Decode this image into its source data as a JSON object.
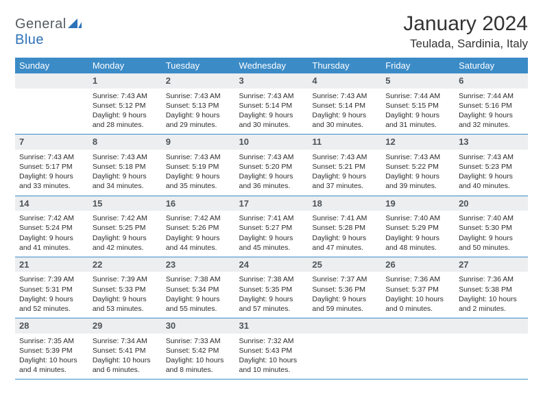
{
  "brand": {
    "name_a": "General",
    "name_b": "Blue"
  },
  "title": "January 2024",
  "location": "Teulada, Sardinia, Italy",
  "day_names": [
    "Sunday",
    "Monday",
    "Tuesday",
    "Wednesday",
    "Thursday",
    "Friday",
    "Saturday"
  ],
  "colors": {
    "header_bg": "#3b8bc7",
    "header_fg": "#ffffff",
    "daynum_bg": "#eceeef",
    "daynum_fg": "#4d5359",
    "rule": "#3b8bc7",
    "page_bg": "#ffffff",
    "text": "#2b2b2b",
    "logo_gray": "#555b60",
    "logo_blue": "#2d72b8"
  },
  "weeks": [
    [
      {
        "n": "",
        "sunrise": "",
        "sunset": "",
        "daylight": ""
      },
      {
        "n": "1",
        "sunrise": "Sunrise: 7:43 AM",
        "sunset": "Sunset: 5:12 PM",
        "daylight": "Daylight: 9 hours and 28 minutes."
      },
      {
        "n": "2",
        "sunrise": "Sunrise: 7:43 AM",
        "sunset": "Sunset: 5:13 PM",
        "daylight": "Daylight: 9 hours and 29 minutes."
      },
      {
        "n": "3",
        "sunrise": "Sunrise: 7:43 AM",
        "sunset": "Sunset: 5:14 PM",
        "daylight": "Daylight: 9 hours and 30 minutes."
      },
      {
        "n": "4",
        "sunrise": "Sunrise: 7:43 AM",
        "sunset": "Sunset: 5:14 PM",
        "daylight": "Daylight: 9 hours and 30 minutes."
      },
      {
        "n": "5",
        "sunrise": "Sunrise: 7:44 AM",
        "sunset": "Sunset: 5:15 PM",
        "daylight": "Daylight: 9 hours and 31 minutes."
      },
      {
        "n": "6",
        "sunrise": "Sunrise: 7:44 AM",
        "sunset": "Sunset: 5:16 PM",
        "daylight": "Daylight: 9 hours and 32 minutes."
      }
    ],
    [
      {
        "n": "7",
        "sunrise": "Sunrise: 7:43 AM",
        "sunset": "Sunset: 5:17 PM",
        "daylight": "Daylight: 9 hours and 33 minutes."
      },
      {
        "n": "8",
        "sunrise": "Sunrise: 7:43 AM",
        "sunset": "Sunset: 5:18 PM",
        "daylight": "Daylight: 9 hours and 34 minutes."
      },
      {
        "n": "9",
        "sunrise": "Sunrise: 7:43 AM",
        "sunset": "Sunset: 5:19 PM",
        "daylight": "Daylight: 9 hours and 35 minutes."
      },
      {
        "n": "10",
        "sunrise": "Sunrise: 7:43 AM",
        "sunset": "Sunset: 5:20 PM",
        "daylight": "Daylight: 9 hours and 36 minutes."
      },
      {
        "n": "11",
        "sunrise": "Sunrise: 7:43 AM",
        "sunset": "Sunset: 5:21 PM",
        "daylight": "Daylight: 9 hours and 37 minutes."
      },
      {
        "n": "12",
        "sunrise": "Sunrise: 7:43 AM",
        "sunset": "Sunset: 5:22 PM",
        "daylight": "Daylight: 9 hours and 39 minutes."
      },
      {
        "n": "13",
        "sunrise": "Sunrise: 7:43 AM",
        "sunset": "Sunset: 5:23 PM",
        "daylight": "Daylight: 9 hours and 40 minutes."
      }
    ],
    [
      {
        "n": "14",
        "sunrise": "Sunrise: 7:42 AM",
        "sunset": "Sunset: 5:24 PM",
        "daylight": "Daylight: 9 hours and 41 minutes."
      },
      {
        "n": "15",
        "sunrise": "Sunrise: 7:42 AM",
        "sunset": "Sunset: 5:25 PM",
        "daylight": "Daylight: 9 hours and 42 minutes."
      },
      {
        "n": "16",
        "sunrise": "Sunrise: 7:42 AM",
        "sunset": "Sunset: 5:26 PM",
        "daylight": "Daylight: 9 hours and 44 minutes."
      },
      {
        "n": "17",
        "sunrise": "Sunrise: 7:41 AM",
        "sunset": "Sunset: 5:27 PM",
        "daylight": "Daylight: 9 hours and 45 minutes."
      },
      {
        "n": "18",
        "sunrise": "Sunrise: 7:41 AM",
        "sunset": "Sunset: 5:28 PM",
        "daylight": "Daylight: 9 hours and 47 minutes."
      },
      {
        "n": "19",
        "sunrise": "Sunrise: 7:40 AM",
        "sunset": "Sunset: 5:29 PM",
        "daylight": "Daylight: 9 hours and 48 minutes."
      },
      {
        "n": "20",
        "sunrise": "Sunrise: 7:40 AM",
        "sunset": "Sunset: 5:30 PM",
        "daylight": "Daylight: 9 hours and 50 minutes."
      }
    ],
    [
      {
        "n": "21",
        "sunrise": "Sunrise: 7:39 AM",
        "sunset": "Sunset: 5:31 PM",
        "daylight": "Daylight: 9 hours and 52 minutes."
      },
      {
        "n": "22",
        "sunrise": "Sunrise: 7:39 AM",
        "sunset": "Sunset: 5:33 PM",
        "daylight": "Daylight: 9 hours and 53 minutes."
      },
      {
        "n": "23",
        "sunrise": "Sunrise: 7:38 AM",
        "sunset": "Sunset: 5:34 PM",
        "daylight": "Daylight: 9 hours and 55 minutes."
      },
      {
        "n": "24",
        "sunrise": "Sunrise: 7:38 AM",
        "sunset": "Sunset: 5:35 PM",
        "daylight": "Daylight: 9 hours and 57 minutes."
      },
      {
        "n": "25",
        "sunrise": "Sunrise: 7:37 AM",
        "sunset": "Sunset: 5:36 PM",
        "daylight": "Daylight: 9 hours and 59 minutes."
      },
      {
        "n": "26",
        "sunrise": "Sunrise: 7:36 AM",
        "sunset": "Sunset: 5:37 PM",
        "daylight": "Daylight: 10 hours and 0 minutes."
      },
      {
        "n": "27",
        "sunrise": "Sunrise: 7:36 AM",
        "sunset": "Sunset: 5:38 PM",
        "daylight": "Daylight: 10 hours and 2 minutes."
      }
    ],
    [
      {
        "n": "28",
        "sunrise": "Sunrise: 7:35 AM",
        "sunset": "Sunset: 5:39 PM",
        "daylight": "Daylight: 10 hours and 4 minutes."
      },
      {
        "n": "29",
        "sunrise": "Sunrise: 7:34 AM",
        "sunset": "Sunset: 5:41 PM",
        "daylight": "Daylight: 10 hours and 6 minutes."
      },
      {
        "n": "30",
        "sunrise": "Sunrise: 7:33 AM",
        "sunset": "Sunset: 5:42 PM",
        "daylight": "Daylight: 10 hours and 8 minutes."
      },
      {
        "n": "31",
        "sunrise": "Sunrise: 7:32 AM",
        "sunset": "Sunset: 5:43 PM",
        "daylight": "Daylight: 10 hours and 10 minutes."
      },
      {
        "n": "",
        "sunrise": "",
        "sunset": "",
        "daylight": ""
      },
      {
        "n": "",
        "sunrise": "",
        "sunset": "",
        "daylight": ""
      },
      {
        "n": "",
        "sunrise": "",
        "sunset": "",
        "daylight": ""
      }
    ]
  ]
}
